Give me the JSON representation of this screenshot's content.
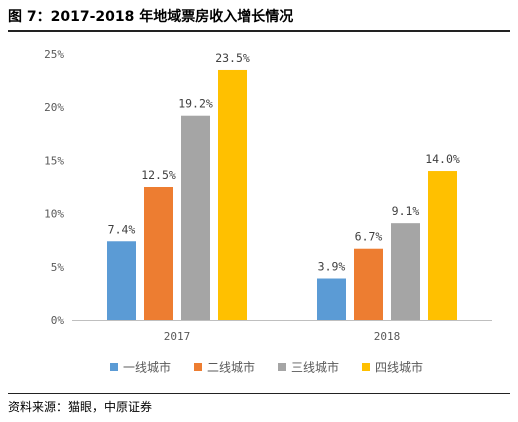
{
  "header": {
    "title": "图 7：2017-2018 年地域票房收入增长情况"
  },
  "footer": {
    "source": "资料来源：猫眼，中原证券"
  },
  "colors": {
    "series": [
      "#5b9bd5",
      "#ed7d31",
      "#a5a5a5",
      "#ffc000"
    ],
    "axis": "#bfbfbf",
    "text": "#595959"
  },
  "chart_data": {
    "type": "bar",
    "title": "",
    "xlabel": "",
    "ylabel": "",
    "categories": [
      "2017",
      "2018"
    ],
    "ylim": [
      0,
      25
    ],
    "yticks": [
      0,
      5,
      10,
      15,
      20,
      25
    ],
    "ytick_labels": [
      "0%",
      "5%",
      "10%",
      "15%",
      "20%",
      "25%"
    ],
    "grid": false,
    "legend_position": "bottom",
    "series": [
      {
        "name": "一线城市",
        "values": [
          7.4,
          3.9
        ],
        "labels": [
          "7.4%",
          "3.9%"
        ]
      },
      {
        "name": "二线城市",
        "values": [
          12.5,
          6.7
        ],
        "labels": [
          "12.5%",
          "6.7%"
        ]
      },
      {
        "name": "三线城市",
        "values": [
          19.2,
          9.1
        ],
        "labels": [
          "19.2%",
          "9.1%"
        ]
      },
      {
        "name": "四线城市",
        "values": [
          23.5,
          14.0
        ],
        "labels": [
          "23.5%",
          "14.0%"
        ]
      }
    ]
  }
}
